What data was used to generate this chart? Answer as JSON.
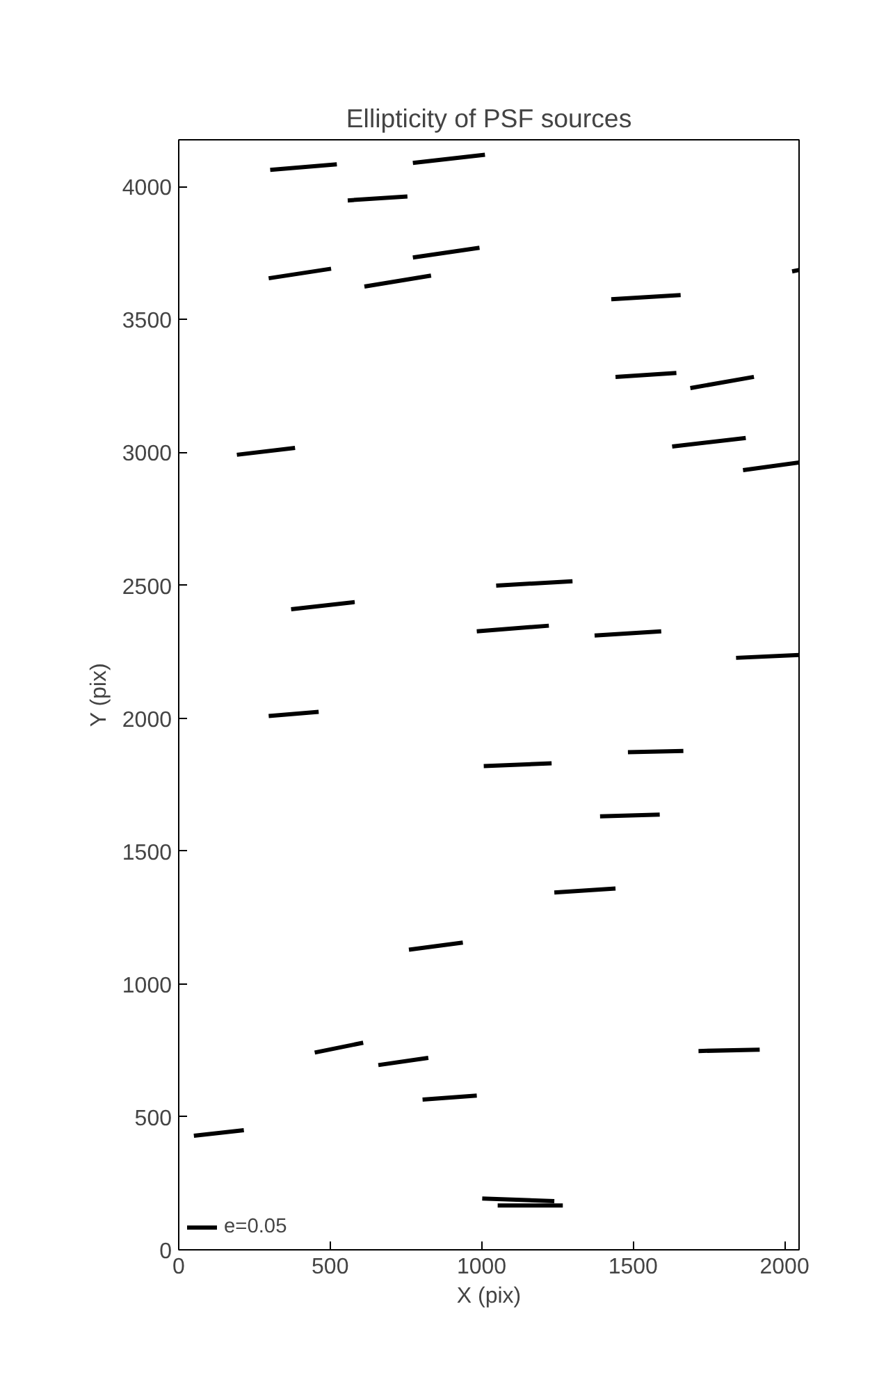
{
  "chart_data": {
    "type": "line",
    "title": "Ellipticity of PSF sources",
    "xlabel": "X (pix)",
    "ylabel": "Y (pix)",
    "xlim": [
      0,
      2048
    ],
    "ylim": [
      0,
      4176
    ],
    "xticks": [
      0,
      500,
      1000,
      1500,
      2000
    ],
    "yticks": [
      0,
      500,
      1000,
      1500,
      2000,
      2500,
      3000,
      3500,
      4000
    ],
    "grid": false,
    "legend": "bottom left",
    "series": [
      {
        "name": "e=0.05",
        "color": "#000000",
        "x": [
          302,
          522
        ],
        "values": [
          4063,
          4084
        ]
      },
      {
        "color": "#000000",
        "x": [
          558,
          755
        ],
        "values": [
          3948,
          3963
        ]
      },
      {
        "color": "#000000",
        "x": [
          773,
          1011
        ],
        "values": [
          4089,
          4120
        ]
      },
      {
        "color": "#000000",
        "x": [
          297,
          503
        ],
        "values": [
          3655,
          3691
        ]
      },
      {
        "color": "#000000",
        "x": [
          613,
          833
        ],
        "values": [
          3624,
          3665
        ]
      },
      {
        "color": "#000000",
        "x": [
          773,
          993
        ],
        "values": [
          3733,
          3770
        ]
      },
      {
        "color": "#000000",
        "x": [
          1428,
          1657
        ],
        "values": [
          3576,
          3592
        ]
      },
      {
        "color": "#000000",
        "x": [
          2025,
          2048
        ],
        "values": [
          3681,
          3686
        ]
      },
      {
        "color": "#000000",
        "x": [
          1442,
          1643
        ],
        "values": [
          3284,
          3299
        ]
      },
      {
        "color": "#000000",
        "x": [
          1689,
          1899
        ],
        "values": [
          3242,
          3284
        ]
      },
      {
        "color": "#000000",
        "x": [
          192,
          384
        ],
        "values": [
          2991,
          3017
        ]
      },
      {
        "color": "#000000",
        "x": [
          1629,
          1872
        ],
        "values": [
          3022,
          3054
        ]
      },
      {
        "color": "#000000",
        "x": [
          1863,
          2048
        ],
        "values": [
          2933,
          2962
        ]
      },
      {
        "color": "#000000",
        "x": [
          371,
          581
        ],
        "values": [
          2410,
          2437
        ]
      },
      {
        "color": "#000000",
        "x": [
          1048,
          1300
        ],
        "values": [
          2499,
          2515
        ]
      },
      {
        "color": "#000000",
        "x": [
          984,
          1222
        ],
        "values": [
          2327,
          2348
        ]
      },
      {
        "color": "#000000",
        "x": [
          1373,
          1593
        ],
        "values": [
          2311,
          2327
        ]
      },
      {
        "color": "#000000",
        "x": [
          1840,
          2048
        ],
        "values": [
          2227,
          2238
        ]
      },
      {
        "color": "#000000",
        "x": [
          297,
          462
        ],
        "values": [
          2008,
          2024
        ]
      },
      {
        "color": "#000000",
        "x": [
          1007,
          1231
        ],
        "values": [
          1820,
          1830
        ]
      },
      {
        "color": "#000000",
        "x": [
          1483,
          1666
        ],
        "values": [
          1872,
          1877
        ]
      },
      {
        "color": "#000000",
        "x": [
          1391,
          1588
        ],
        "values": [
          1631,
          1637
        ]
      },
      {
        "color": "#000000",
        "x": [
          1240,
          1442
        ],
        "values": [
          1344,
          1359
        ]
      },
      {
        "color": "#000000",
        "x": [
          760,
          938
        ],
        "values": [
          1129,
          1156
        ]
      },
      {
        "color": "#000000",
        "x": [
          449,
          609
        ],
        "values": [
          742,
          779
        ]
      },
      {
        "color": "#000000",
        "x": [
          659,
          824
        ],
        "values": [
          695,
          722
        ]
      },
      {
        "color": "#000000",
        "x": [
          805,
          984
        ],
        "values": [
          565,
          580
        ]
      },
      {
        "color": "#000000",
        "x": [
          1716,
          1918
        ],
        "values": [
          748,
          753
        ]
      },
      {
        "color": "#000000",
        "x": [
          50,
          215
        ],
        "values": [
          429,
          450
        ]
      },
      {
        "color": "#000000",
        "x": [
          1002,
          1240
        ],
        "values": [
          193,
          183
        ]
      },
      {
        "color": "#000000",
        "x": [
          1053,
          1268
        ],
        "values": [
          167,
          167
        ]
      }
    ]
  }
}
